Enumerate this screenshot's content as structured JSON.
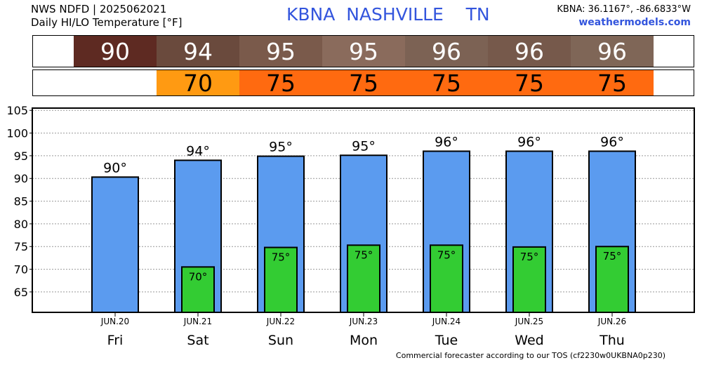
{
  "header": {
    "line1": "NWS NDFD | 2025062021",
    "line2": "Daily HI/LO Temperature [°F]",
    "station": "KBNA  NASHVILLE    TN",
    "coords": "KBNA: 36.1167°, -86.6833°W",
    "site": "weathermodels.com"
  },
  "footer": "Commercial forecaster according to our TOS (cf2230w0UKBNA0p230)",
  "hi_row": [
    {
      "value": "90",
      "color": "#5e2a22"
    },
    {
      "value": "94",
      "color": "#6a4a3d"
    },
    {
      "value": "95",
      "color": "#7a5a4b"
    },
    {
      "value": "95",
      "color": "#8a6b5c"
    },
    {
      "value": "96",
      "color": "#7c6254"
    },
    {
      "value": "96",
      "color": "#76594b"
    },
    {
      "value": "96",
      "color": "#7f6657"
    }
  ],
  "lo_row": [
    {
      "value": "",
      "color": "#ffffff"
    },
    {
      "value": "70",
      "color": "#ff9a12"
    },
    {
      "value": "75",
      "color": "#ff6a10"
    },
    {
      "value": "75",
      "color": "#ff6a10"
    },
    {
      "value": "75",
      "color": "#ff6a10"
    },
    {
      "value": "75",
      "color": "#ff6a10"
    },
    {
      "value": "75",
      "color": "#ff6a10"
    }
  ],
  "chart_data": {
    "type": "bar",
    "categories": [
      "JUN.20",
      "JUN.21",
      "JUN.22",
      "JUN.23",
      "JUN.24",
      "JUN.25",
      "JUN.26"
    ],
    "days": [
      "Fri",
      "Sat",
      "Sun",
      "Mon",
      "Tue",
      "Wed",
      "Thu"
    ],
    "series": [
      {
        "values": [
          90.3,
          94.0,
          94.9,
          95.1,
          96.0,
          96.0,
          96.0
        ],
        "labels": [
          "90°",
          "94°",
          "95°",
          "95°",
          "96°",
          "96°",
          "96°"
        ],
        "color": "#5b9bef"
      },
      {
        "values": [
          null,
          70.5,
          74.8,
          75.3,
          75.3,
          74.9,
          75.0
        ],
        "labels": [
          "",
          "70°",
          "75°",
          "75°",
          "75°",
          "75°",
          "75°"
        ],
        "color": "#33cc33"
      }
    ],
    "yticks": [
      65,
      70,
      75,
      80,
      85,
      90,
      95,
      100,
      105
    ],
    "ylim": [
      60.5,
      105.5
    ],
    "grid": true
  }
}
